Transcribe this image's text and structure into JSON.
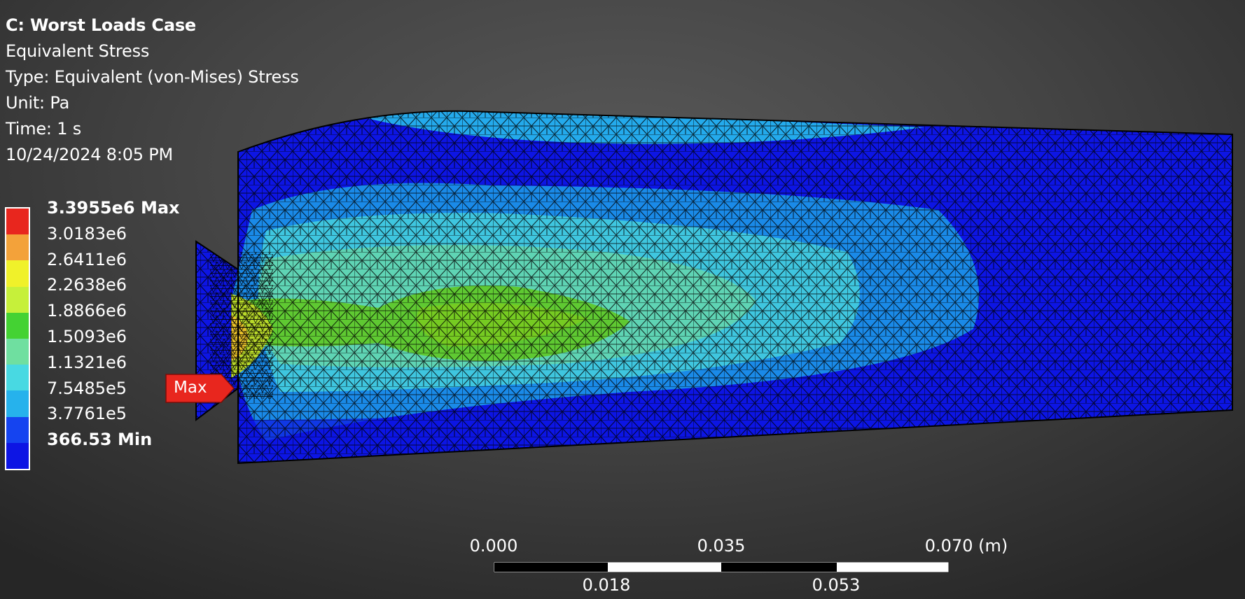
{
  "info": {
    "title": "C: Worst Loads Case",
    "result": "Equivalent Stress",
    "type": "Type: Equivalent (von-Mises) Stress",
    "unit": "Unit: Pa",
    "time": "Time: 1 s",
    "timestamp": "10/24/2024 8:05 PM"
  },
  "legend": {
    "levels": [
      {
        "label": "3.3955e6 Max",
        "color": "#e8261e",
        "bold": true
      },
      {
        "label": "3.0183e6",
        "color": "#f3a23a",
        "bold": false
      },
      {
        "label": "2.6411e6",
        "color": "#f0f12a",
        "bold": false
      },
      {
        "label": "2.2638e6",
        "color": "#c6f03a",
        "bold": false
      },
      {
        "label": "1.8866e6",
        "color": "#44d233",
        "bold": false
      },
      {
        "label": "1.5093e6",
        "color": "#6fdfa0",
        "bold": false
      },
      {
        "label": "1.1321e6",
        "color": "#48d9e2",
        "bold": false
      },
      {
        "label": "7.5485e5",
        "color": "#26b2ec",
        "bold": false
      },
      {
        "label": "3.7761e5",
        "color": "#1544f0",
        "bold": false
      },
      {
        "label": "366.53 Min",
        "color": "#0d15e4",
        "bold": true
      }
    ]
  },
  "max_probe": {
    "label": "Max",
    "color": "#e8261e"
  },
  "scale_bar": {
    "top_labels": [
      "0.000",
      "0.035",
      "0.070 (m)"
    ],
    "bottom_labels": [
      "0.018",
      "0.053"
    ]
  }
}
